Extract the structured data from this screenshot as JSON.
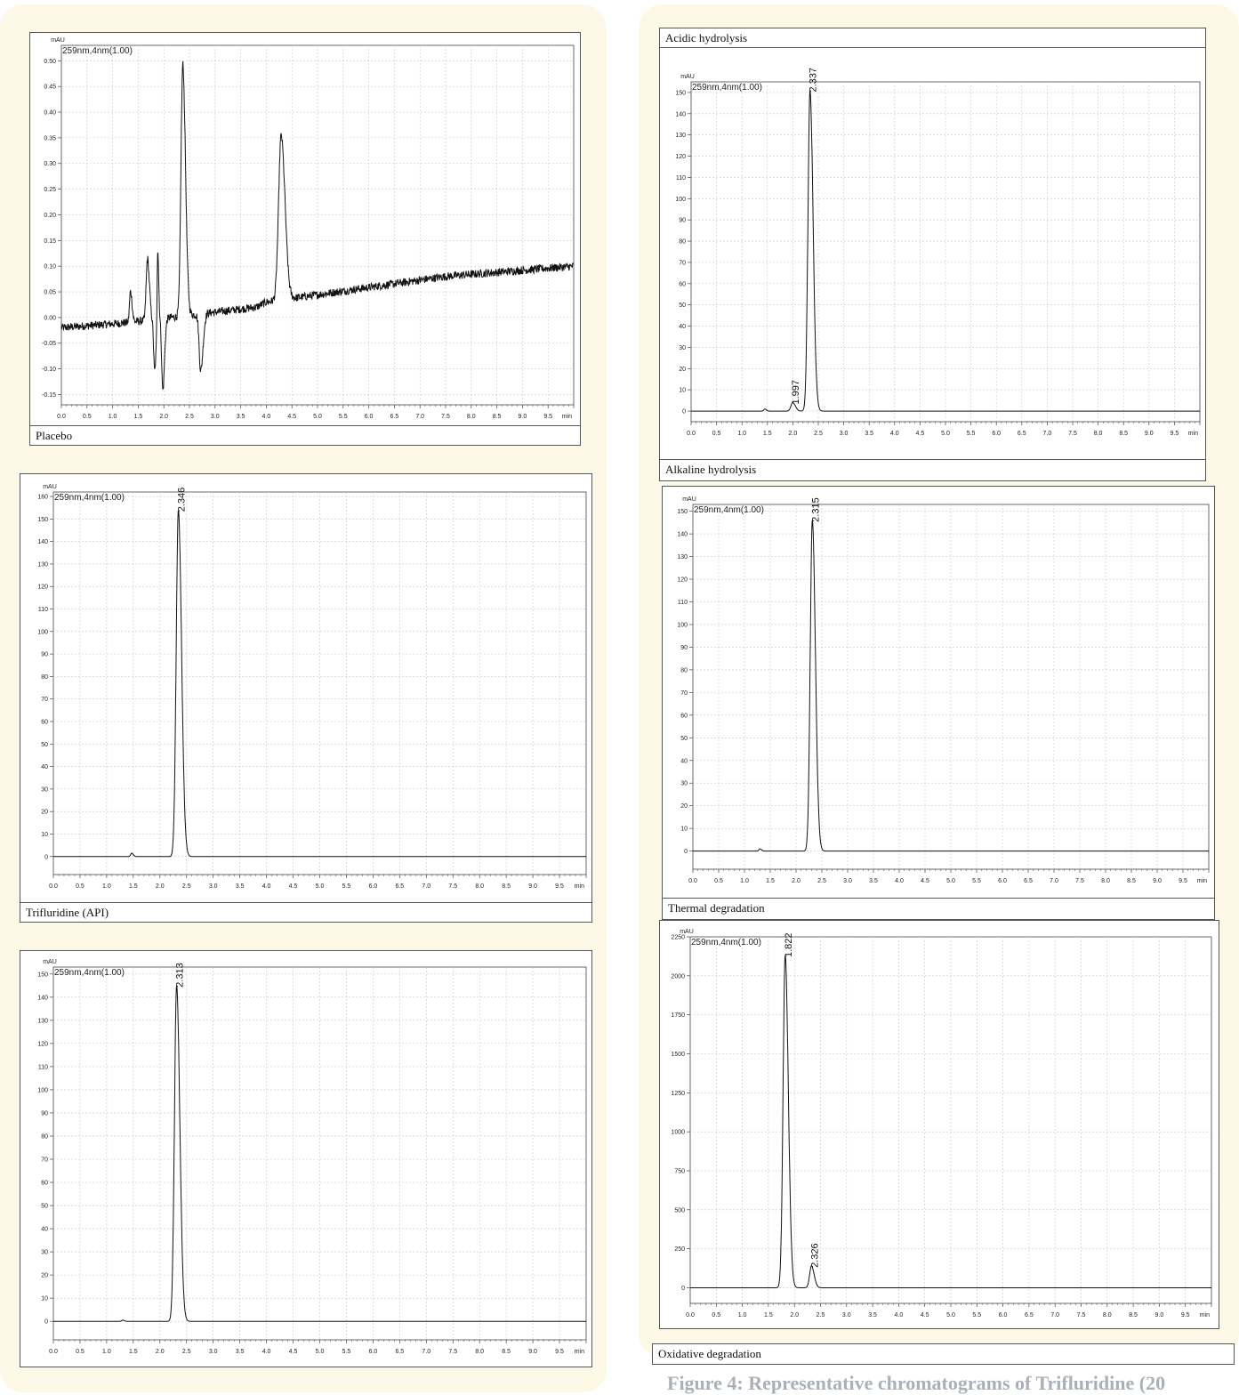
{
  "caption": "Figure 4: Representative chromatograms of Trifluridine (20",
  "chart_data": [
    {
      "id": "placebo",
      "type": "line",
      "caption": "Placebo",
      "ylabel": "mAU",
      "xlabel": "min",
      "channel": "259nm,4nm(1.00)",
      "xlim": [
        0,
        10
      ],
      "ylim": [
        -0.17,
        0.53
      ],
      "yticks": [
        -0.15,
        -0.1,
        -0.05,
        0.0,
        0.05,
        0.1,
        0.15,
        0.2,
        0.25,
        0.3,
        0.35,
        0.4,
        0.45,
        0.5
      ],
      "ytick_labels": [
        "-0.15",
        "-0.10",
        "-0.05",
        "0.00",
        "0.05",
        "0.10",
        "0.15",
        "0.20",
        "0.25",
        "0.30",
        "0.35",
        "0.40",
        "0.45",
        "0.50"
      ],
      "baseline": {
        "x": [
          0.0,
          1.3,
          3.8,
          4.0,
          7.5,
          10.0
        ],
        "y": [
          -0.02,
          -0.01,
          0.02,
          0.03,
          0.08,
          0.1
        ]
      },
      "noise": 0.008,
      "peaks": [
        {
          "x": 1.35,
          "y": 0.06,
          "w": 0.02
        },
        {
          "x": 1.68,
          "y": 0.12,
          "w": 0.025
        },
        {
          "x": 1.82,
          "y": -0.1,
          "w": 0.02
        },
        {
          "x": 1.88,
          "y": 0.15,
          "w": 0.012
        },
        {
          "x": 1.98,
          "y": -0.14,
          "w": 0.022
        },
        {
          "x": 2.37,
          "y": 0.49,
          "w": 0.035
        },
        {
          "x": 2.72,
          "y": -0.11,
          "w": 0.03
        },
        {
          "x": 4.29,
          "y": 0.32,
          "w": 0.05
        }
      ],
      "labels": []
    },
    {
      "id": "api",
      "type": "line",
      "caption": "Trifluridine (API)",
      "ylabel": "mAU",
      "xlabel": "min",
      "channel": "259nm,4nm(1.00)",
      "xlim": [
        0,
        10
      ],
      "ylim": [
        -8,
        162
      ],
      "yticks": [
        0,
        10,
        20,
        30,
        40,
        50,
        60,
        70,
        80,
        90,
        100,
        110,
        120,
        130,
        140,
        150,
        160
      ],
      "ytick_labels": [
        "0",
        "10",
        "20",
        "30",
        "40",
        "50",
        "60",
        "70",
        "80",
        "90",
        "100",
        "110",
        "120",
        "130",
        "140",
        "150",
        "160"
      ],
      "baseline": {
        "x": [
          0,
          10
        ],
        "y": [
          0,
          0
        ]
      },
      "noise": 0,
      "peaks": [
        {
          "x": 1.47,
          "y": 1.5,
          "w": 0.02
        },
        {
          "x": 2.346,
          "y": 154,
          "w": 0.04
        }
      ],
      "labels": [
        {
          "x": 2.346,
          "y": 154,
          "text": "2.346"
        }
      ]
    },
    {
      "id": "thermal",
      "type": "line",
      "caption": "",
      "ylabel": "mAU",
      "xlabel": "min",
      "channel": "259nm,4nm(1.00)",
      "xlim": [
        0,
        10
      ],
      "ylim": [
        -8,
        153
      ],
      "yticks": [
        0,
        10,
        20,
        30,
        40,
        50,
        60,
        70,
        80,
        90,
        100,
        110,
        120,
        130,
        140,
        150
      ],
      "ytick_labels": [
        "0",
        "10",
        "20",
        "30",
        "40",
        "50",
        "60",
        "70",
        "80",
        "90",
        "100",
        "110",
        "120",
        "130",
        "140",
        "150"
      ],
      "baseline": {
        "x": [
          0,
          10
        ],
        "y": [
          0,
          0
        ]
      },
      "noise": 0,
      "peaks": [
        {
          "x": 1.3,
          "y": 0.5,
          "w": 0.02
        },
        {
          "x": 2.313,
          "y": 145,
          "w": 0.04
        }
      ],
      "labels": [
        {
          "x": 2.313,
          "y": 145,
          "text": "2.313"
        }
      ]
    },
    {
      "id": "acidic",
      "type": "line",
      "caption": "Acidic hydrolysis",
      "ylabel": "mAU",
      "xlabel": "min",
      "channel": "259nm,4nm(1.00)",
      "xlim": [
        0,
        10
      ],
      "ylim": [
        -5,
        155
      ],
      "yticks": [
        0,
        10,
        20,
        30,
        40,
        50,
        60,
        70,
        80,
        90,
        100,
        110,
        120,
        130,
        140,
        150
      ],
      "ytick_labels": [
        "0",
        "10",
        "20",
        "30",
        "40",
        "50",
        "60",
        "70",
        "80",
        "90",
        "100",
        "110",
        "120",
        "130",
        "140",
        "150"
      ],
      "baseline": {
        "x": [
          0,
          10
        ],
        "y": [
          0,
          0
        ]
      },
      "noise": 0,
      "peaks": [
        {
          "x": 1.45,
          "y": 1,
          "w": 0.02
        },
        {
          "x": 1.997,
          "y": 4,
          "w": 0.035
        },
        {
          "x": 2.337,
          "y": 151,
          "w": 0.04
        }
      ],
      "labels": [
        {
          "x": 1.997,
          "y": 4,
          "text": "1.997"
        },
        {
          "x": 2.337,
          "y": 151,
          "text": "2.337"
        }
      ]
    },
    {
      "id": "alkaline",
      "type": "line",
      "caption": "",
      "ylabel": "mAU",
      "xlabel": "min",
      "channel": "259nm,4nm(1.00)",
      "xlim": [
        0,
        10
      ],
      "ylim": [
        -8,
        153
      ],
      "yticks": [
        0,
        10,
        20,
        30,
        40,
        50,
        60,
        70,
        80,
        90,
        100,
        110,
        120,
        130,
        140,
        150
      ],
      "ytick_labels": [
        "0",
        "10",
        "20",
        "30",
        "40",
        "50",
        "60",
        "70",
        "80",
        "90",
        "100",
        "110",
        "120",
        "130",
        "140",
        "150"
      ],
      "baseline": {
        "x": [
          0,
          10
        ],
        "y": [
          0,
          0
        ]
      },
      "noise": 0,
      "peaks": [
        {
          "x": 1.3,
          "y": 1,
          "w": 0.02
        },
        {
          "x": 2.315,
          "y": 146,
          "w": 0.04
        }
      ],
      "labels": [
        {
          "x": 2.315,
          "y": 146,
          "text": "2.315"
        }
      ]
    },
    {
      "id": "oxidative",
      "type": "line",
      "caption": "",
      "ylabel": "mAU",
      "xlabel": "min",
      "channel": "259nm,4nm(1.00)",
      "xlim": [
        0,
        10
      ],
      "ylim": [
        -100,
        2250
      ],
      "yticks": [
        0,
        250,
        500,
        750,
        1000,
        1250,
        1500,
        1750,
        2000,
        2250
      ],
      "ytick_labels": [
        "0",
        "250",
        "500",
        "750",
        "1000",
        "1250",
        "1500",
        "1750",
        "2000",
        "2250"
      ],
      "baseline": {
        "x": [
          0,
          10
        ],
        "y": [
          0,
          0
        ]
      },
      "noise": 0,
      "peaks": [
        {
          "x": 1.822,
          "y": 2130,
          "w": 0.04
        },
        {
          "x": 2.326,
          "y": 140,
          "w": 0.035
        }
      ],
      "labels": [
        {
          "x": 1.822,
          "y": 2130,
          "text": "1.822"
        },
        {
          "x": 2.326,
          "y": 140,
          "text": "2.326"
        }
      ]
    }
  ],
  "standalone_captions": {
    "alkaline_label": "Alkaline hydrolysis",
    "thermal_label": "Thermal degradation",
    "oxidative_label": "Oxidative degradation"
  }
}
